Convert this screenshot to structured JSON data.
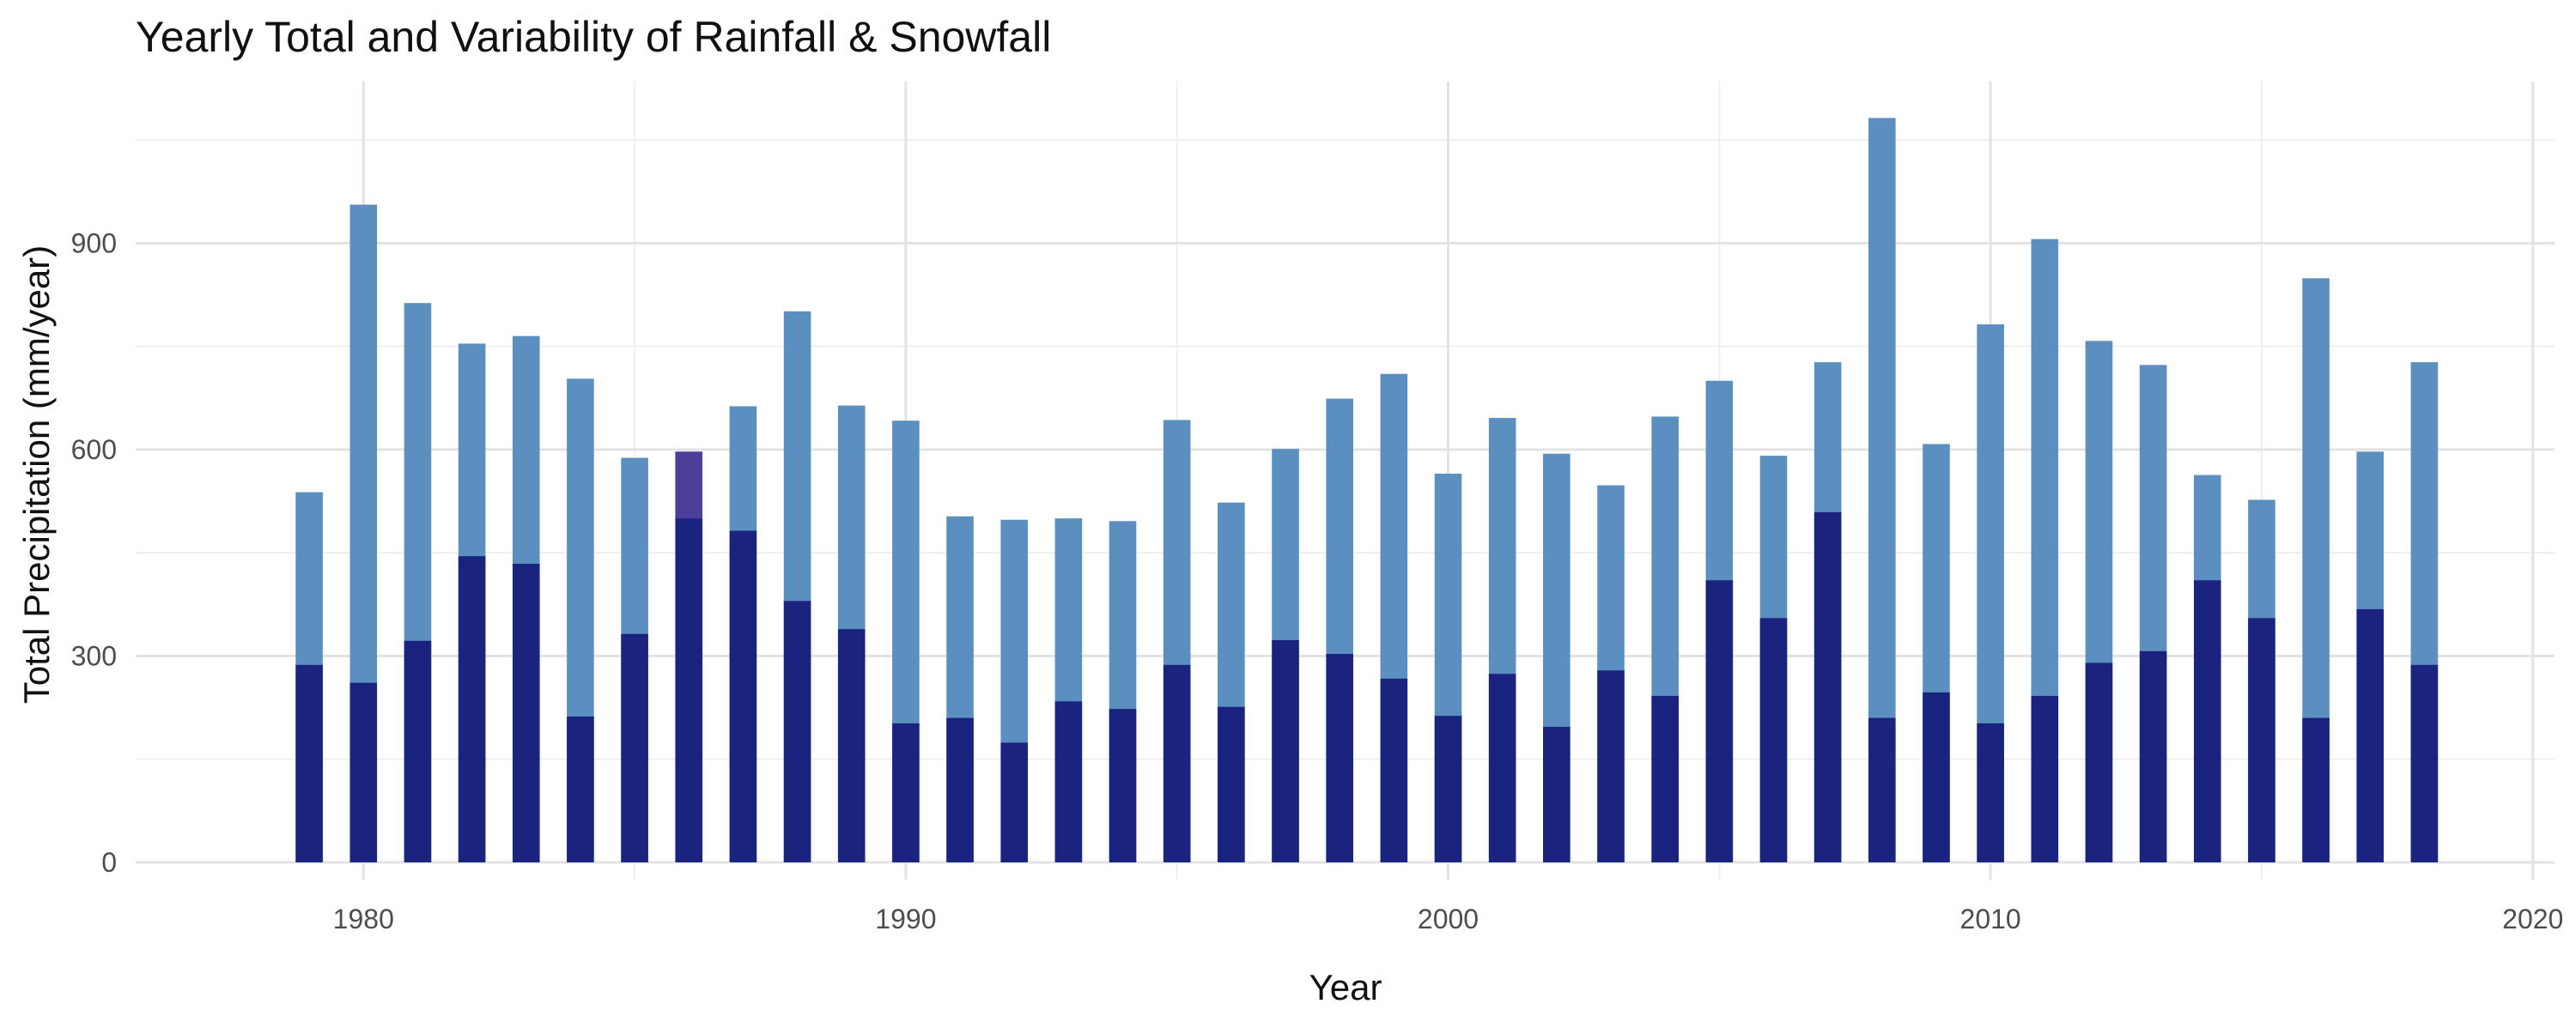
{
  "chart_data": {
    "type": "bar",
    "title": "Yearly Total and Variability of Rainfall & Snowfall",
    "xlabel": "Year",
    "ylabel": "Total Precipitation (mm/year)",
    "xlim": [
      1975.8,
      2020.4
    ],
    "ylim": [
      -25,
      1135
    ],
    "x_ticks": [
      1980,
      1990,
      2000,
      2010,
      2020
    ],
    "y_ticks": [
      0,
      300,
      600,
      900
    ],
    "grid": true,
    "legend": "none",
    "colors": {
      "rainfall": "#1a237e",
      "total": "#5b8fc0",
      "highlight": "#4b3f9a",
      "grid": "#e3e3e3",
      "text": "#111111",
      "tick_text": "#4d4d4d"
    },
    "x": [
      1979,
      1980,
      1981,
      1982,
      1983,
      1984,
      1985,
      1986,
      1987,
      1988,
      1989,
      1990,
      1991,
      1992,
      1993,
      1994,
      1995,
      1996,
      1997,
      1998,
      1999,
      2000,
      2001,
      2002,
      2003,
      2004,
      2005,
      2006,
      2007,
      2008,
      2009,
      2010,
      2011,
      2012,
      2013,
      2014,
      2015,
      2016,
      2017,
      2018
    ],
    "series": [
      {
        "role": "rainfall",
        "values": [
          287,
          261,
          322,
          445,
          434,
          212,
          332,
          500,
          482,
          380,
          339,
          202,
          210,
          174,
          234,
          223,
          287,
          226,
          323,
          303,
          267,
          213,
          274,
          197,
          279,
          242,
          410,
          355,
          509,
          210,
          247,
          202,
          242,
          290,
          307,
          410,
          355,
          210,
          368,
          287
        ]
      },
      {
        "role": "total",
        "values": [
          538,
          956,
          813,
          754,
          765,
          703,
          588,
          597,
          663,
          801,
          664,
          642,
          503,
          498,
          500,
          496,
          643,
          523,
          601,
          674,
          710,
          565,
          646,
          594,
          548,
          648,
          700,
          591,
          727,
          1082,
          608,
          782,
          906,
          758,
          723,
          563,
          527,
          849,
          597,
          727
        ]
      }
    ]
  }
}
